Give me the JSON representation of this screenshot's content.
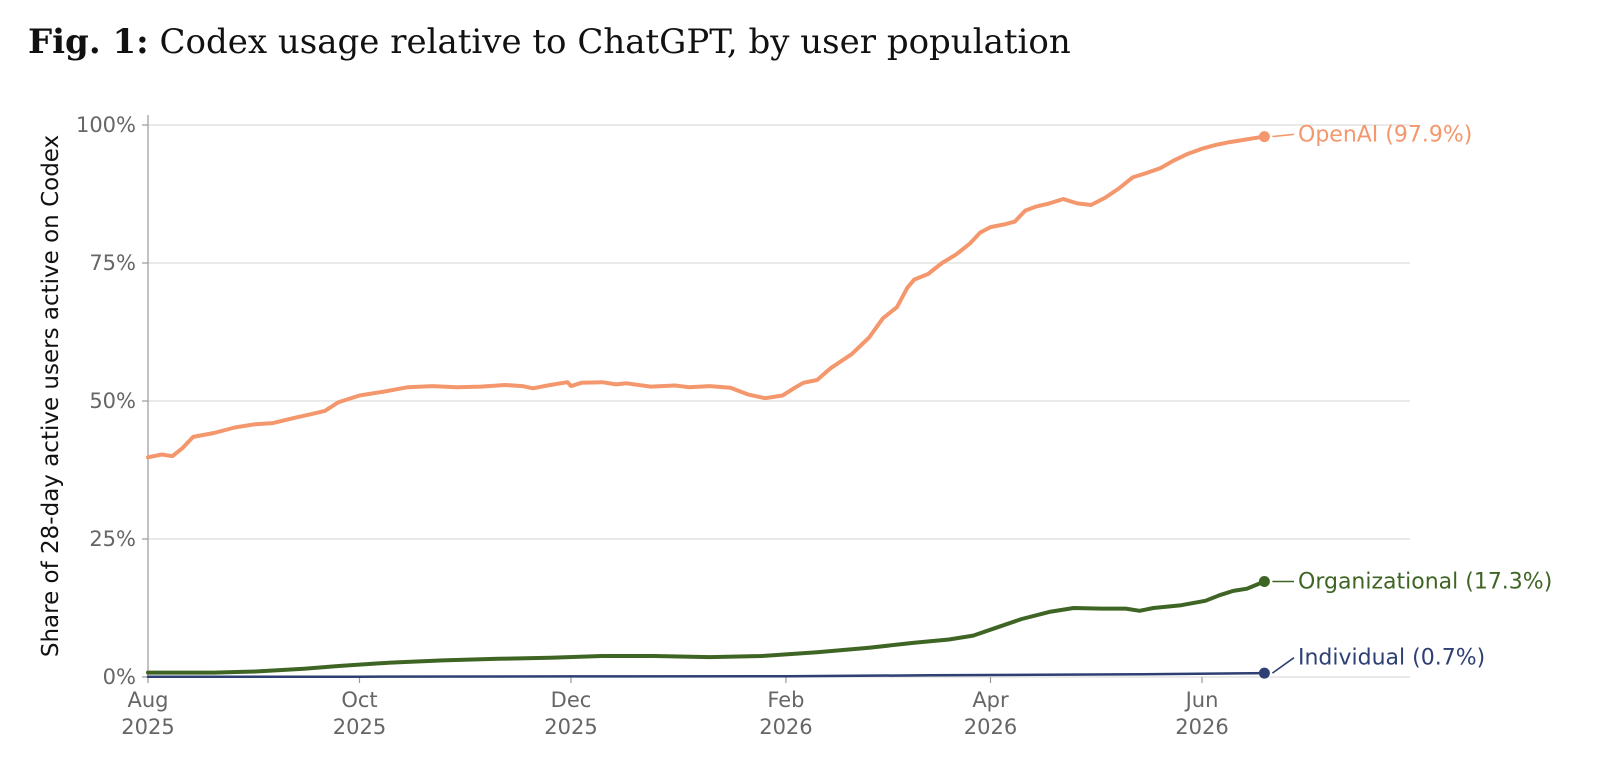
{
  "figure": {
    "prefix": "Fig. 1:",
    "title": "Codex usage relative to ChatGPT, by user population"
  },
  "chart_data": {
    "type": "line",
    "title": "Codex usage relative to ChatGPT, by user population",
    "xlabel": "",
    "ylabel": "Share of 28-day active users active on Codex",
    "xlim": [
      "2025-08-01",
      "2026-07-31"
    ],
    "ylim": [
      0,
      100
    ],
    "y_ticks": [
      {
        "value": 0,
        "label": "0%"
      },
      {
        "value": 25,
        "label": "25%"
      },
      {
        "value": 50,
        "label": "50%"
      },
      {
        "value": 75,
        "label": "75%"
      },
      {
        "value": 100,
        "label": "100%"
      }
    ],
    "x_ticks": [
      {
        "date": "2025-08-01",
        "month": "Aug",
        "year": "2025"
      },
      {
        "date": "2025-10-01",
        "month": "Oct",
        "year": "2025"
      },
      {
        "date": "2025-12-01",
        "month": "Dec",
        "year": "2025"
      },
      {
        "date": "2026-02-01",
        "month": "Feb",
        "year": "2026"
      },
      {
        "date": "2026-04-01",
        "month": "Apr",
        "year": "2026"
      },
      {
        "date": "2026-06-01",
        "month": "Jun",
        "year": "2026"
      }
    ],
    "grid": "horizontal",
    "legend": "end-of-line labels",
    "series": [
      {
        "name": "OpenAI",
        "end_label": "OpenAI (97.9%)",
        "color": "#F4976C",
        "points": [
          [
            "2025-08-01",
            39.8
          ],
          [
            "2025-08-05",
            40.3
          ],
          [
            "2025-08-08",
            40.0
          ],
          [
            "2025-08-11",
            41.5
          ],
          [
            "2025-08-14",
            43.5
          ],
          [
            "2025-08-20",
            44.2
          ],
          [
            "2025-08-26",
            45.2
          ],
          [
            "2025-09-01",
            45.8
          ],
          [
            "2025-09-06",
            46.0
          ],
          [
            "2025-09-12",
            46.9
          ],
          [
            "2025-09-17",
            47.6
          ],
          [
            "2025-09-21",
            48.2
          ],
          [
            "2025-09-25",
            49.8
          ],
          [
            "2025-10-01",
            51.0
          ],
          [
            "2025-10-08",
            51.7
          ],
          [
            "2025-10-15",
            52.5
          ],
          [
            "2025-10-22",
            52.7
          ],
          [
            "2025-10-29",
            52.5
          ],
          [
            "2025-11-05",
            52.6
          ],
          [
            "2025-11-12",
            52.9
          ],
          [
            "2025-11-17",
            52.7
          ],
          [
            "2025-11-20",
            52.3
          ],
          [
            "2025-11-25",
            52.9
          ],
          [
            "2025-11-30",
            53.4
          ],
          [
            "2025-12-01",
            52.7
          ],
          [
            "2025-12-04",
            53.3
          ],
          [
            "2025-12-10",
            53.4
          ],
          [
            "2025-12-14",
            53.0
          ],
          [
            "2025-12-17",
            53.2
          ],
          [
            "2025-12-24",
            52.6
          ],
          [
            "2025-12-31",
            52.8
          ],
          [
            "2026-01-04",
            52.5
          ],
          [
            "2026-01-10",
            52.7
          ],
          [
            "2026-01-16",
            52.4
          ],
          [
            "2026-01-21",
            51.2
          ],
          [
            "2026-01-26",
            50.5
          ],
          [
            "2026-01-31",
            51.0
          ],
          [
            "2026-02-03",
            52.2
          ],
          [
            "2026-02-06",
            53.3
          ],
          [
            "2026-02-10",
            53.8
          ],
          [
            "2026-02-14",
            56.0
          ],
          [
            "2026-02-20",
            58.5
          ],
          [
            "2026-02-25",
            61.5
          ],
          [
            "2026-03-01",
            65.0
          ],
          [
            "2026-03-05",
            67.0
          ],
          [
            "2026-03-08",
            70.5
          ],
          [
            "2026-03-10",
            72.0
          ],
          [
            "2026-03-14",
            73.0
          ],
          [
            "2026-03-18",
            75.0
          ],
          [
            "2026-03-22",
            76.5
          ],
          [
            "2026-03-26",
            78.5
          ],
          [
            "2026-03-29",
            80.5
          ],
          [
            "2026-04-01",
            81.5
          ],
          [
            "2026-04-05",
            82.0
          ],
          [
            "2026-04-08",
            82.5
          ],
          [
            "2026-04-11",
            84.5
          ],
          [
            "2026-04-14",
            85.2
          ],
          [
            "2026-04-18",
            85.8
          ],
          [
            "2026-04-22",
            86.6
          ],
          [
            "2026-04-26",
            85.8
          ],
          [
            "2026-04-30",
            85.5
          ],
          [
            "2026-05-04",
            86.8
          ],
          [
            "2026-05-08",
            88.5
          ],
          [
            "2026-05-12",
            90.5
          ],
          [
            "2026-05-16",
            91.3
          ],
          [
            "2026-05-20",
            92.2
          ],
          [
            "2026-05-24",
            93.6
          ],
          [
            "2026-05-28",
            94.8
          ],
          [
            "2026-06-01",
            95.7
          ],
          [
            "2026-06-05",
            96.4
          ],
          [
            "2026-06-09",
            96.9
          ],
          [
            "2026-06-13",
            97.3
          ],
          [
            "2026-06-16",
            97.6
          ],
          [
            "2026-06-19",
            97.9
          ]
        ]
      },
      {
        "name": "Organizational",
        "end_label": "Organizational (17.3%)",
        "color": "#3F6525",
        "points": [
          [
            "2025-08-01",
            0.8
          ],
          [
            "2025-08-20",
            0.8
          ],
          [
            "2025-09-01",
            1.0
          ],
          [
            "2025-09-15",
            1.5
          ],
          [
            "2025-09-25",
            2.0
          ],
          [
            "2025-10-10",
            2.6
          ],
          [
            "2025-10-25",
            3.0
          ],
          [
            "2025-11-10",
            3.3
          ],
          [
            "2025-11-25",
            3.5
          ],
          [
            "2025-12-10",
            3.8
          ],
          [
            "2025-12-25",
            3.8
          ],
          [
            "2026-01-10",
            3.6
          ],
          [
            "2026-01-25",
            3.8
          ],
          [
            "2026-02-10",
            4.5
          ],
          [
            "2026-02-25",
            5.3
          ],
          [
            "2026-03-10",
            6.2
          ],
          [
            "2026-03-20",
            6.8
          ],
          [
            "2026-03-27",
            7.5
          ],
          [
            "2026-04-03",
            9.0
          ],
          [
            "2026-04-10",
            10.5
          ],
          [
            "2026-04-18",
            11.8
          ],
          [
            "2026-04-25",
            12.5
          ],
          [
            "2026-05-03",
            12.4
          ],
          [
            "2026-05-10",
            12.4
          ],
          [
            "2026-05-14",
            12.0
          ],
          [
            "2026-05-18",
            12.5
          ],
          [
            "2026-05-26",
            13.0
          ],
          [
            "2026-06-02",
            13.8
          ],
          [
            "2026-06-06",
            14.8
          ],
          [
            "2026-06-10",
            15.6
          ],
          [
            "2026-06-14",
            16.0
          ],
          [
            "2026-06-19",
            17.3
          ]
        ]
      },
      {
        "name": "Individual",
        "end_label": "Individual (0.7%)",
        "color": "#2E3F73",
        "points": [
          [
            "2025-08-01",
            0.05
          ],
          [
            "2025-10-01",
            0.05
          ],
          [
            "2025-12-01",
            0.1
          ],
          [
            "2026-02-01",
            0.15
          ],
          [
            "2026-03-15",
            0.3
          ],
          [
            "2026-04-15",
            0.4
          ],
          [
            "2026-05-15",
            0.5
          ],
          [
            "2026-06-19",
            0.7
          ]
        ]
      }
    ]
  }
}
